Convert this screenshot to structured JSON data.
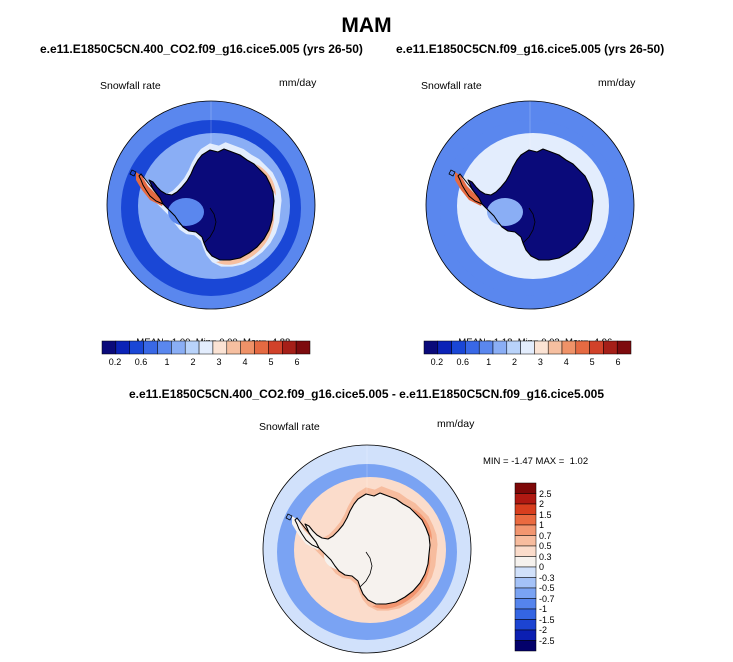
{
  "figure": {
    "title": "MAM",
    "diff_title": "e.e11.E1850C5CN.400_CO2.f09_g16.cice5.005 - e.e11.E1850C5CN.f09_g16.cice5.005"
  },
  "colors": {
    "abs_palette": [
      "#0a0a7a",
      "#0b23b7",
      "#1a47d6",
      "#3968e6",
      "#5a87ee",
      "#8aaef5",
      "#b9d3fa",
      "#e3edfd",
      "#fbe3d4",
      "#f6bfa0",
      "#ef9268",
      "#e56a42",
      "#d1422a",
      "#a51f18",
      "#7d0b0e"
    ],
    "diff_palette": [
      "#03016b",
      "#0b1fb2",
      "#1c44d2",
      "#3465e3",
      "#5584ed",
      "#7aa3f3",
      "#a4c2f8",
      "#d1e1fb",
      "#f6f2ee",
      "#fbdccb",
      "#f7bc9e",
      "#f29670",
      "#ea6a40",
      "#d83e1e",
      "#b01912",
      "#7e0808"
    ],
    "coast": "#000000"
  },
  "chart_data": [
    {
      "type": "heatmap",
      "projection": "south-polar-stereographic",
      "title": "e.e11.E1850C5CN.400_CO2.f09_g16.cice5.005 (yrs 26-50)",
      "left_label": "Snowfall rate",
      "right_label": "mm/day",
      "stats": {
        "mean_label": "MEAN=",
        "mean": "1.00",
        "min_label": "Min=",
        "min": "0.00",
        "max_label": "Max=",
        "max": "4.88"
      },
      "colorbar_levels": [
        "0.2",
        "0.6",
        "1",
        "2",
        "3",
        "4",
        "5",
        "6"
      ],
      "colorbar_orientation": "horizontal",
      "field_levels": {
        "ocean_far": 0.9,
        "ocean_mid": 0.6,
        "shelf_band": 1.9,
        "peninsula_peak": 4.5,
        "ross_coast": 3.2,
        "interior": 0.1
      }
    },
    {
      "type": "heatmap",
      "projection": "south-polar-stereographic",
      "title": "e.e11.E1850C5CN.f09_g16.cice5.005 (yrs 26-50)",
      "left_label": "Snowfall rate",
      "right_label": "mm/day",
      "stats": {
        "mean_label": "MEAN=",
        "mean": "1.18",
        "min_label": "Min=",
        "min": "0.03",
        "max_label": "Max=",
        "max": "4.96"
      },
      "colorbar_levels": [
        "0.2",
        "0.6",
        "1",
        "2",
        "3",
        "4",
        "5",
        "6"
      ],
      "colorbar_orientation": "horizontal",
      "field_levels": {
        "ocean_far": 1.0,
        "ocean_mid": 0.7,
        "shelf_band": 2.1,
        "peninsula_peak": 4.6,
        "ross_coast": 3.0,
        "interior": 0.15
      }
    },
    {
      "type": "heatmap",
      "projection": "south-polar-stereographic",
      "title": "e.e11.E1850C5CN.400_CO2.f09_g16.cice5.005 - e.e11.E1850C5CN.f09_g16.cice5.005",
      "left_label": "Snowfall rate",
      "right_label": "mm/day",
      "stats": {
        "min_label": "MIN =",
        "min": "-1.47",
        "max_label": "MAX =",
        "max": "1.02"
      },
      "colorbar_levels": [
        "-2.5",
        "-2",
        "-1.5",
        "-1",
        "-0.7",
        "-0.5",
        "-0.3",
        "0",
        "0.3",
        "0.5",
        "0.7",
        "1",
        "1.5",
        "2",
        "2.5"
      ],
      "colorbar_orientation": "vertical",
      "field_levels": {
        "ocean_far": -0.2,
        "ocean_mid": -0.6,
        "shelf_band": 0.45,
        "peninsula_peak": 0.3,
        "ross_coast": 0.8,
        "interior": 0.1
      }
    }
  ]
}
